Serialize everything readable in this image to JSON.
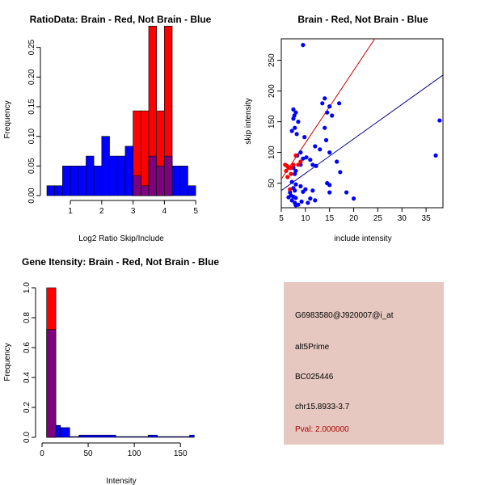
{
  "colors": {
    "red": "#ff0000",
    "blue": "#0000ff",
    "overlap": "#7f007f",
    "panel_bg": "#e6c8c0",
    "pval": "#b00000"
  },
  "chart_data": [
    {
      "id": "ratio",
      "type": "bar",
      "title": "RatioData: Brain - Red, Not Brain - Blue",
      "xlabel": "Log2 Ratio Skip/Include",
      "ylabel": "Frequency",
      "xlim": [
        0.25,
        5.1
      ],
      "ylim": [
        0,
        0.3
      ],
      "xticks": [
        1,
        2,
        3,
        4,
        5
      ],
      "yticks": [
        0.0,
        0.05,
        0.1,
        0.15,
        0.2,
        0.25
      ],
      "ytick_labels": [
        "0.00",
        "0.05",
        "0.10",
        "0.15",
        "0.20",
        "0.25"
      ],
      "series": [
        {
          "name": "Not Brain",
          "color": "blue",
          "bins": [
            [
              0.25,
              0.5,
              0.0167
            ],
            [
              0.5,
              0.75,
              0.0167
            ],
            [
              0.75,
              1.0,
              0.05
            ],
            [
              1.0,
              1.25,
              0.05
            ],
            [
              1.25,
              1.5,
              0.05
            ],
            [
              1.5,
              1.75,
              0.0667
            ],
            [
              1.75,
              2.0,
              0.05
            ],
            [
              2.0,
              2.25,
              0.1
            ],
            [
              2.25,
              2.5,
              0.0667
            ],
            [
              2.5,
              2.75,
              0.0667
            ],
            [
              2.75,
              3.0,
              0.0833
            ],
            [
              3.0,
              3.25,
              0.0333
            ],
            [
              3.25,
              3.5,
              0.0167
            ],
            [
              3.5,
              3.75,
              0.0667
            ],
            [
              3.75,
              4.0,
              0.05
            ],
            [
              4.0,
              4.25,
              0.0667
            ],
            [
              4.25,
              4.5,
              0.05
            ],
            [
              4.5,
              4.75,
              0.05
            ],
            [
              4.75,
              5.0,
              0.0167
            ]
          ]
        },
        {
          "name": "Brain",
          "color": "red",
          "bins": [
            [
              3.0,
              3.25,
              0.143
            ],
            [
              3.25,
              3.5,
              0.143
            ],
            [
              3.5,
              3.75,
              0.286
            ],
            [
              3.75,
              4.0,
              0.143
            ],
            [
              4.0,
              4.25,
              0.286
            ]
          ]
        }
      ]
    },
    {
      "id": "scatter",
      "type": "scatter",
      "title": "Brain - Red, Not Brain - Blue",
      "xlabel": "include intensity",
      "ylabel": "skip intensity",
      "xlim": [
        5,
        38.5
      ],
      "ylim": [
        10,
        285
      ],
      "xticks": [
        5,
        10,
        15,
        20,
        25,
        30,
        35
      ],
      "yticks": [
        50,
        100,
        150,
        200,
        250
      ],
      "fit_lines": [
        {
          "color": "red",
          "intercept": -2.5,
          "slope": 11.8
        },
        {
          "color": "blue",
          "intercept": 9.9,
          "slope": 5.61
        }
      ],
      "series": [
        {
          "name": "Not Brain",
          "color": "blue",
          "points": [
            [
              9.5,
              275
            ],
            [
              7.5,
              170
            ],
            [
              8,
              165
            ],
            [
              7.7,
              160
            ],
            [
              7.5,
              155
            ],
            [
              8.5,
              150
            ],
            [
              7.8,
              140
            ],
            [
              7.2,
              135
            ],
            [
              8.2,
              130
            ],
            [
              9.8,
              125
            ],
            [
              13.5,
              180
            ],
            [
              14,
              188
            ],
            [
              15,
              175
            ],
            [
              14.5,
              165
            ],
            [
              15.5,
              160
            ],
            [
              17,
              180
            ],
            [
              14,
              140
            ],
            [
              14.3,
              120
            ],
            [
              12,
              110
            ],
            [
              13,
              105
            ],
            [
              15,
              100
            ],
            [
              9,
              100
            ],
            [
              8.3,
              95
            ],
            [
              9.5,
              90
            ],
            [
              10.2,
              92
            ],
            [
              11,
              88
            ],
            [
              9,
              80
            ],
            [
              7.5,
              75
            ],
            [
              11.5,
              80
            ],
            [
              12.2,
              78
            ],
            [
              8,
              70
            ],
            [
              7.8,
              65
            ],
            [
              16.5,
              85
            ],
            [
              17.2,
              68
            ],
            [
              14.5,
              50
            ],
            [
              15,
              47
            ],
            [
              7.2,
              52
            ],
            [
              8,
              48
            ],
            [
              9,
              45
            ],
            [
              7.5,
              42
            ],
            [
              7.8,
              38
            ],
            [
              9.5,
              36
            ],
            [
              10,
              40
            ],
            [
              11.5,
              38
            ],
            [
              6.8,
              35
            ],
            [
              7,
              30
            ],
            [
              7.5,
              28
            ],
            [
              8,
              26
            ],
            [
              6.5,
              27
            ],
            [
              7.2,
              22
            ],
            [
              7.8,
              18
            ],
            [
              8.5,
              15
            ],
            [
              8,
              14
            ],
            [
              9.2,
              20
            ],
            [
              10.5,
              18
            ],
            [
              11,
              25
            ],
            [
              12,
              22
            ],
            [
              15,
              35
            ],
            [
              18.5,
              35
            ],
            [
              20,
              25
            ],
            [
              37,
              95
            ],
            [
              37.8,
              152
            ]
          ]
        },
        {
          "name": "Brain",
          "color": "red",
          "points": [
            [
              5.8,
              80
            ],
            [
              6.2,
              78
            ],
            [
              6.5,
              75
            ],
            [
              7,
              75
            ],
            [
              6,
              70
            ],
            [
              6.3,
              60
            ],
            [
              7.5,
              80
            ],
            [
              8.5,
              80
            ],
            [
              7,
              65
            ],
            [
              8,
              95
            ],
            [
              9,
              85
            ],
            [
              6.8,
              40
            ]
          ]
        }
      ]
    },
    {
      "id": "intensity",
      "type": "bar",
      "title": "Gene Itensity: Brain - Red, Not Brain - Blue",
      "xlabel": "Intensity",
      "ylabel": "Frequency",
      "xlim": [
        0,
        170
      ],
      "ylim": [
        0,
        1.0
      ],
      "xticks": [
        0,
        50,
        100,
        150
      ],
      "yticks": [
        0.0,
        0.2,
        0.4,
        0.6,
        0.8,
        1.0
      ],
      "ytick_labels": [
        "0.0",
        "0.2",
        "0.4",
        "0.6",
        "0.8",
        "1.0"
      ],
      "series": [
        {
          "name": "Not Brain",
          "color": "blue",
          "bins": [
            [
              5,
              15,
              0.72
            ],
            [
              15,
              20,
              0.08
            ],
            [
              20,
              30,
              0.065
            ],
            [
              30,
              40,
              0.005
            ],
            [
              40,
              80,
              0.015
            ],
            [
              80,
              115,
              0.005
            ],
            [
              115,
              125,
              0.015
            ],
            [
              125,
              160,
              0.005
            ],
            [
              160,
              165,
              0.015
            ]
          ]
        },
        {
          "name": "Brain",
          "color": "red",
          "bins": [
            [
              5,
              15,
              1.0
            ]
          ]
        }
      ]
    }
  ],
  "info": {
    "probe": "G6983580@J920007@i_at",
    "event": "alt5Prime",
    "accession": "BC025446",
    "location": "chr15.8933-3.7",
    "pval": "Pval: 2.000000"
  }
}
